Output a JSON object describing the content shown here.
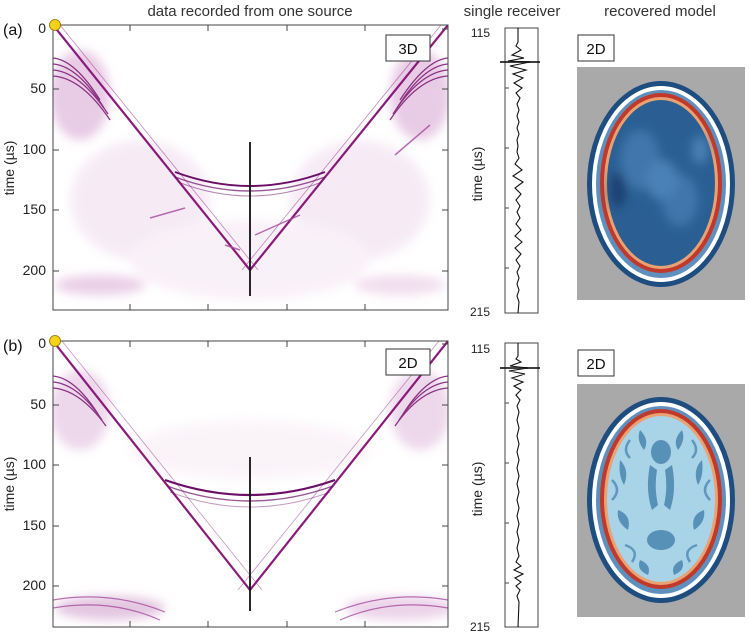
{
  "headers": {
    "data": "data recorded from one source",
    "receiver": "single receiver",
    "model": "recovered model"
  },
  "panels": [
    {
      "label": "(a)",
      "data_badge": "3D",
      "model_badge": "2D",
      "ylabel": "time (µs)",
      "time_ticks": [
        "0",
        "50",
        "100",
        "150",
        "200"
      ],
      "receiver_ticks": [
        "115",
        "215"
      ],
      "receiver_ylabel": "time (µs)"
    },
    {
      "label": "(b)",
      "data_badge": "2D",
      "model_badge": "2D",
      "ylabel": "time (µs)",
      "time_ticks": [
        "0",
        "50",
        "100",
        "150",
        "200"
      ],
      "receiver_ticks": [
        "115",
        "215"
      ],
      "receiver_ylabel": "time (µs)"
    }
  ],
  "colors": {
    "wavefield": "#8a1a7a",
    "wavefield_light": "#c77cc0",
    "marker": "#f5d21a",
    "model_background": "#a9a9a9",
    "skull": "#c0392b",
    "scalp": "#1e4d80",
    "brain_dark": "#2b5f93",
    "brain_light": "#a9d3e6"
  }
}
